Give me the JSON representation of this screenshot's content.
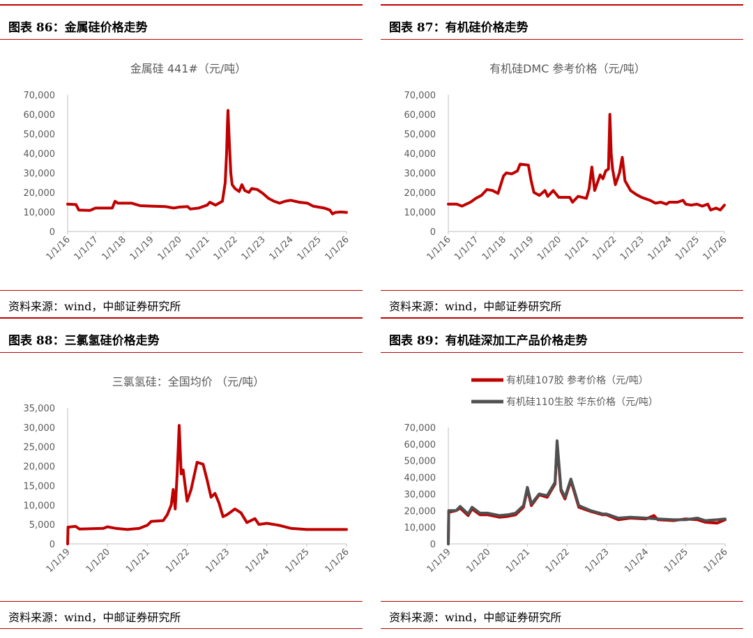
{
  "panels": [
    {
      "header": "图表 86：金属硅价格走势",
      "source": "资料来源：wind，中邮证券研究所",
      "chart_title": "金属硅 441#（元/吨）"
    },
    {
      "header": "图表 87：有机硅价格走势",
      "source": "资料来源：wind，中邮证券研究所",
      "chart_title": "有机硅DMC 参考价格（元/吨）"
    },
    {
      "header": "图表 88：三氯氢硅价格走势",
      "source": "资料来源：wind，中邮证券研究所",
      "chart_title": "三氯氢硅：全国均价 （元/吨）"
    },
    {
      "header": "图表 89：有机硅深加工产品价格走势",
      "source": "资料来源：wind，中邮证券研究所",
      "chart_title": ""
    }
  ],
  "colors": {
    "red": "#c00000",
    "series_red": "#c00000",
    "series_gray": "#505050"
  },
  "chart_data": [
    {
      "type": "line",
      "title": "金属硅 441#（元/吨）",
      "ylim": [
        0,
        70000
      ],
      "yticks": [
        "0",
        "10,000",
        "20,000",
        "30,000",
        "40,000",
        "50,000",
        "60,000",
        "70,000"
      ],
      "xticks": [
        "1/1/16",
        "1/1/17",
        "1/1/18",
        "1/1/19",
        "1/1/20",
        "1/1/21",
        "1/1/22",
        "1/1/23",
        "1/1/24",
        "1/1/25",
        "1/1/26"
      ],
      "xrange": [
        2016.0,
        2026.0
      ],
      "series": [
        {
          "color": "#c00000",
          "points": [
            [
              2016.0,
              14000
            ],
            [
              2016.3,
              13800
            ],
            [
              2016.4,
              11000
            ],
            [
              2016.8,
              10800
            ],
            [
              2017.0,
              12000
            ],
            [
              2017.6,
              12000
            ],
            [
              2017.7,
              15500
            ],
            [
              2017.8,
              14500
            ],
            [
              2018.3,
              14500
            ],
            [
              2018.6,
              13200
            ],
            [
              2019.0,
              13000
            ],
            [
              2019.5,
              12800
            ],
            [
              2019.8,
              12000
            ],
            [
              2020.0,
              12500
            ],
            [
              2020.3,
              12800
            ],
            [
              2020.4,
              11500
            ],
            [
              2020.7,
              12000
            ],
            [
              2021.0,
              13500
            ],
            [
              2021.1,
              15000
            ],
            [
              2021.3,
              13500
            ],
            [
              2021.55,
              15500
            ],
            [
              2021.65,
              25000
            ],
            [
              2021.7,
              40000
            ],
            [
              2021.73,
              55000
            ],
            [
              2021.75,
              62000
            ],
            [
              2021.8,
              45000
            ],
            [
              2021.85,
              30000
            ],
            [
              2021.9,
              24000
            ],
            [
              2022.0,
              22000
            ],
            [
              2022.15,
              20500
            ],
            [
              2022.25,
              24000
            ],
            [
              2022.35,
              21000
            ],
            [
              2022.5,
              20000
            ],
            [
              2022.6,
              22000
            ],
            [
              2022.8,
              21500
            ],
            [
              2023.0,
              19500
            ],
            [
              2023.2,
              17000
            ],
            [
              2023.4,
              15500
            ],
            [
              2023.6,
              14500
            ],
            [
              2023.8,
              15500
            ],
            [
              2024.0,
              16000
            ],
            [
              2024.3,
              15000
            ],
            [
              2024.6,
              14500
            ],
            [
              2024.8,
              13000
            ],
            [
              2025.0,
              12500
            ],
            [
              2025.2,
              12000
            ],
            [
              2025.4,
              11000
            ],
            [
              2025.5,
              9000
            ],
            [
              2025.6,
              9800
            ],
            [
              2025.8,
              10000
            ],
            [
              2026.0,
              9800
            ]
          ]
        }
      ]
    },
    {
      "type": "line",
      "title": "有机硅DMC 参考价格（元/吨）",
      "ylim": [
        0,
        70000
      ],
      "yticks": [
        "0",
        "10,000",
        "20,000",
        "30,000",
        "40,000",
        "50,000",
        "60,000",
        "70,000"
      ],
      "xticks": [
        "1/1/16",
        "1/1/17",
        "1/1/18",
        "1/1/19",
        "1/1/20",
        "1/1/21",
        "1/1/22",
        "1/1/23",
        "1/1/24",
        "1/1/25",
        "1/1/26"
      ],
      "xrange": [
        2016.0,
        2026.0
      ],
      "series": [
        {
          "color": "#c00000",
          "points": [
            [
              2016.0,
              14000
            ],
            [
              2016.3,
              14000
            ],
            [
              2016.5,
              13000
            ],
            [
              2016.8,
              15000
            ],
            [
              2017.0,
              17000
            ],
            [
              2017.2,
              18500
            ],
            [
              2017.4,
              21500
            ],
            [
              2017.6,
              21000
            ],
            [
              2017.8,
              19500
            ],
            [
              2018.0,
              28500
            ],
            [
              2018.1,
              30000
            ],
            [
              2018.3,
              29500
            ],
            [
              2018.5,
              31000
            ],
            [
              2018.6,
              34500
            ],
            [
              2018.9,
              34000
            ],
            [
              2019.0,
              26000
            ],
            [
              2019.1,
              20000
            ],
            [
              2019.3,
              18500
            ],
            [
              2019.5,
              21000
            ],
            [
              2019.6,
              18000
            ],
            [
              2019.8,
              21000
            ],
            [
              2020.0,
              17500
            ],
            [
              2020.4,
              17500
            ],
            [
              2020.5,
              15000
            ],
            [
              2020.7,
              18000
            ],
            [
              2021.0,
              17000
            ],
            [
              2021.1,
              22000
            ],
            [
              2021.2,
              33000
            ],
            [
              2021.3,
              21000
            ],
            [
              2021.5,
              29000
            ],
            [
              2021.6,
              27000
            ],
            [
              2021.7,
              31000
            ],
            [
              2021.8,
              32000
            ],
            [
              2021.85,
              60000
            ],
            [
              2021.9,
              40000
            ],
            [
              2021.95,
              32000
            ],
            [
              2022.05,
              24000
            ],
            [
              2022.2,
              30000
            ],
            [
              2022.3,
              38000
            ],
            [
              2022.4,
              26000
            ],
            [
              2022.6,
              21000
            ],
            [
              2022.8,
              19000
            ],
            [
              2023.0,
              17500
            ],
            [
              2023.3,
              16000
            ],
            [
              2023.5,
              14500
            ],
            [
              2023.7,
              15000
            ],
            [
              2023.9,
              14000
            ],
            [
              2024.0,
              15000
            ],
            [
              2024.3,
              15000
            ],
            [
              2024.5,
              16000
            ],
            [
              2024.6,
              14000
            ],
            [
              2024.8,
              13500
            ],
            [
              2025.0,
              14000
            ],
            [
              2025.2,
              13000
            ],
            [
              2025.4,
              14000
            ],
            [
              2025.5,
              11000
            ],
            [
              2025.7,
              12000
            ],
            [
              2025.85,
              11000
            ],
            [
              2026.0,
              13500
            ]
          ]
        }
      ]
    },
    {
      "type": "line",
      "title": "三氯氢硅：全国均价 （元/吨）",
      "ylim": [
        0,
        35000
      ],
      "yticks": [
        "0",
        "5,000",
        "10,000",
        "15,000",
        "20,000",
        "25,000",
        "30,000",
        "35,000"
      ],
      "xticks": [
        "1/1/19",
        "1/1/20",
        "1/1/21",
        "1/1/22",
        "1/1/23",
        "1/1/24",
        "1/1/25",
        "1/1/26"
      ],
      "xrange": [
        2019.0,
        2026.0
      ],
      "series": [
        {
          "color": "#c00000",
          "points": [
            [
              2019.0,
              0
            ],
            [
              2019.01,
              4300
            ],
            [
              2019.2,
              4500
            ],
            [
              2019.3,
              3800
            ],
            [
              2019.6,
              3900
            ],
            [
              2019.9,
              4000
            ],
            [
              2020.0,
              4400
            ],
            [
              2020.2,
              4000
            ],
            [
              2020.5,
              3700
            ],
            [
              2020.8,
              4000
            ],
            [
              2021.0,
              4800
            ],
            [
              2021.1,
              5800
            ],
            [
              2021.4,
              6000
            ],
            [
              2021.5,
              7500
            ],
            [
              2021.6,
              10000
            ],
            [
              2021.65,
              14000
            ],
            [
              2021.7,
              9000
            ],
            [
              2021.75,
              18000
            ],
            [
              2021.8,
              30500
            ],
            [
              2021.85,
              18000
            ],
            [
              2021.9,
              19000
            ],
            [
              2022.0,
              11000
            ],
            [
              2022.1,
              14000
            ],
            [
              2022.25,
              21000
            ],
            [
              2022.4,
              20500
            ],
            [
              2022.5,
              16500
            ],
            [
              2022.6,
              12000
            ],
            [
              2022.7,
              13000
            ],
            [
              2022.8,
              10500
            ],
            [
              2022.9,
              7000
            ],
            [
              2023.0,
              7500
            ],
            [
              2023.2,
              9000
            ],
            [
              2023.35,
              8000
            ],
            [
              2023.5,
              5500
            ],
            [
              2023.7,
              6500
            ],
            [
              2023.8,
              5000
            ],
            [
              2024.0,
              5300
            ],
            [
              2024.3,
              4800
            ],
            [
              2024.6,
              4000
            ],
            [
              2025.0,
              3700
            ],
            [
              2026.0,
              3700
            ]
          ]
        }
      ]
    },
    {
      "type": "line",
      "ylim": [
        0,
        70000
      ],
      "yticks": [
        "0",
        "10,000",
        "20,000",
        "30,000",
        "40,000",
        "50,000",
        "60,000",
        "70,000"
      ],
      "xticks": [
        "1/1/19",
        "1/1/20",
        "1/1/21",
        "1/1/22",
        "1/1/23",
        "1/1/24",
        "1/1/25",
        "1/1/26"
      ],
      "xrange": [
        2019.0,
        2026.0
      ],
      "legend": [
        "有机硅107胶 参考价格（元/吨）",
        "有机硅110生胶 华东价格（元/吨）"
      ],
      "series": [
        {
          "name": "有机硅107胶 参考价格（元/吨）",
          "color": "#c00000",
          "points": [
            [
              2019.0,
              0
            ],
            [
              2019.01,
              19000
            ],
            [
              2019.2,
              20000
            ],
            [
              2019.3,
              21500
            ],
            [
              2019.5,
              17000
            ],
            [
              2019.6,
              21000
            ],
            [
              2019.8,
              17500
            ],
            [
              2020.0,
              17500
            ],
            [
              2020.3,
              16000
            ],
            [
              2020.5,
              16500
            ],
            [
              2020.7,
              17500
            ],
            [
              2020.9,
              22000
            ],
            [
              2021.0,
              33000
            ],
            [
              2021.1,
              23000
            ],
            [
              2021.3,
              29500
            ],
            [
              2021.5,
              28000
            ],
            [
              2021.7,
              36000
            ],
            [
              2021.75,
              60000
            ],
            [
              2021.85,
              32000
            ],
            [
              2021.95,
              27000
            ],
            [
              2022.1,
              38000
            ],
            [
              2022.2,
              30000
            ],
            [
              2022.3,
              22000
            ],
            [
              2022.6,
              19500
            ],
            [
              2022.9,
              17500
            ],
            [
              2023.0,
              17500
            ],
            [
              2023.3,
              14500
            ],
            [
              2023.6,
              15500
            ],
            [
              2024.0,
              15000
            ],
            [
              2024.2,
              17000
            ],
            [
              2024.3,
              14500
            ],
            [
              2024.7,
              14000
            ],
            [
              2025.0,
              15000
            ],
            [
              2025.3,
              14500
            ],
            [
              2025.5,
              13000
            ],
            [
              2025.8,
              12500
            ],
            [
              2026.0,
              14500
            ]
          ]
        },
        {
          "name": "有机硅110生胶 华东价格（元/吨）",
          "color": "#505050",
          "points": [
            [
              2019.0,
              0
            ],
            [
              2019.01,
              20000
            ],
            [
              2019.2,
              20000
            ],
            [
              2019.3,
              22500
            ],
            [
              2019.5,
              18000
            ],
            [
              2019.6,
              22000
            ],
            [
              2019.8,
              18500
            ],
            [
              2020.0,
              18500
            ],
            [
              2020.3,
              17000
            ],
            [
              2020.5,
              17500
            ],
            [
              2020.7,
              18500
            ],
            [
              2020.9,
              23000
            ],
            [
              2021.0,
              34000
            ],
            [
              2021.1,
              24000
            ],
            [
              2021.3,
              30000
            ],
            [
              2021.5,
              29000
            ],
            [
              2021.7,
              37000
            ],
            [
              2021.75,
              62000
            ],
            [
              2021.85,
              33000
            ],
            [
              2021.95,
              28000
            ],
            [
              2022.1,
              39000
            ],
            [
              2022.2,
              31000
            ],
            [
              2022.3,
              23000
            ],
            [
              2022.6,
              20000
            ],
            [
              2022.9,
              18000
            ],
            [
              2023.0,
              18000
            ],
            [
              2023.3,
              15500
            ],
            [
              2023.6,
              16000
            ],
            [
              2024.0,
              15500
            ],
            [
              2024.3,
              15000
            ],
            [
              2024.7,
              14500
            ],
            [
              2025.0,
              14500
            ],
            [
              2025.3,
              15500
            ],
            [
              2025.5,
              14000
            ],
            [
              2025.8,
              14500
            ],
            [
              2026.0,
              15000
            ]
          ]
        }
      ]
    }
  ]
}
